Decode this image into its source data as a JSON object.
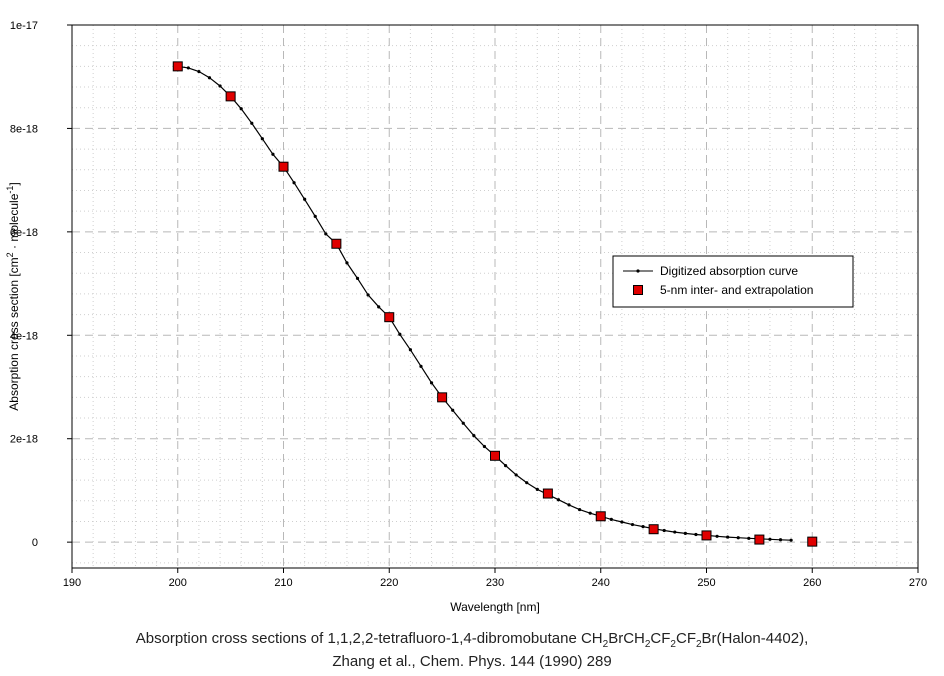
{
  "caption": {
    "line1_prefix": "Absorption cross sections of 1,1,2,2-tetrafluoro-1,4-dibromobutane CH",
    "formula_parts": [
      {
        "t": "2",
        "sub": true
      },
      {
        "t": "BrCH",
        "sub": false
      },
      {
        "t": "2",
        "sub": true
      },
      {
        "t": "CF",
        "sub": false
      },
      {
        "t": "2",
        "sub": true
      },
      {
        "t": "CF",
        "sub": false
      },
      {
        "t": "2",
        "sub": true
      },
      {
        "t": "Br(Halon-4402),",
        "sub": false
      }
    ],
    "line2": "Zhang et al., Chem. Phys. 144 (1990) 289"
  },
  "chart_data": {
    "type": "line",
    "xlabel": "Wavelength [nm]",
    "ylabel_parts": [
      {
        "t": "Absorption cross section [cm",
        "sup": false
      },
      {
        "t": "2",
        "sup": true
      },
      {
        "t": " · molecule",
        "sup": false
      },
      {
        "t": "-1",
        "sup": true
      },
      {
        "t": "]",
        "sup": false
      }
    ],
    "xlim": [
      190,
      270
    ],
    "ylim": [
      -5e-19,
      1e-17
    ],
    "x_ticks": [
      190,
      200,
      210,
      220,
      230,
      240,
      250,
      260,
      270
    ],
    "x_tick_labels": [
      "190",
      "200",
      "210",
      "220",
      "230",
      "240",
      "250",
      "260",
      "270"
    ],
    "y_ticks": [
      0,
      2e-18,
      4e-18,
      6e-18,
      8e-18,
      1e-17
    ],
    "y_tick_labels": [
      "0",
      "2e-18",
      "4e-18",
      "6e-18",
      "8e-18",
      "1e-17"
    ],
    "grid": true,
    "legend_position": "right",
    "series": [
      {
        "name": "Digitized absorption curve",
        "style": "line-small-markers",
        "color": "#000000",
        "x": [
          200,
          201,
          202,
          203,
          204,
          205,
          206,
          207,
          208,
          209,
          210,
          211,
          212,
          213,
          214,
          215,
          216,
          217,
          218,
          219,
          220,
          221,
          222,
          223,
          224,
          225,
          226,
          227,
          228,
          229,
          230,
          231,
          232,
          233,
          234,
          235,
          236,
          237,
          238,
          239,
          240,
          241,
          242,
          243,
          244,
          245,
          246,
          247,
          248,
          249,
          250,
          251,
          252,
          253,
          254,
          255,
          256,
          257,
          258
        ],
        "y": [
          9.2e-18,
          9.17e-18,
          9.1e-18,
          8.98e-18,
          8.82e-18,
          8.62e-18,
          8.38e-18,
          8.1e-18,
          7.8e-18,
          7.5e-18,
          7.26e-18,
          6.95e-18,
          6.63e-18,
          6.3e-18,
          5.96e-18,
          5.77e-18,
          5.4e-18,
          5.1e-18,
          4.78e-18,
          4.55e-18,
          4.35e-18,
          4.02e-18,
          3.72e-18,
          3.4e-18,
          3.08e-18,
          2.8e-18,
          2.55e-18,
          2.3e-18,
          2.06e-18,
          1.85e-18,
          1.67e-18,
          1.48e-18,
          1.3e-18,
          1.15e-18,
          1.02e-18,
          9.2e-19,
          8.2e-19,
          7.2e-19,
          6.3e-19,
          5.6e-19,
          5e-19,
          4.4e-19,
          3.9e-19,
          3.4e-19,
          3e-19,
          2.6e-19,
          2.25e-19,
          1.95e-19,
          1.7e-19,
          1.48e-19,
          1.3e-19,
          1.13e-19,
          9.8e-20,
          8.5e-20,
          7.4e-20,
          6.4e-20,
          5.5e-20,
          4.6e-20,
          3.8e-20
        ]
      },
      {
        "name": "5-nm inter- and extrapolation",
        "style": "square-markers",
        "color": "#e00000",
        "x": [
          200,
          205,
          210,
          215,
          220,
          225,
          230,
          235,
          240,
          245,
          250,
          255,
          260
        ],
        "y": [
          9.2e-18,
          8.62e-18,
          7.26e-18,
          5.77e-18,
          4.35e-18,
          2.8e-18,
          1.67e-18,
          9.4e-19,
          5e-19,
          2.5e-19,
          1.3e-19,
          5e-20,
          1e-20
        ]
      }
    ]
  }
}
